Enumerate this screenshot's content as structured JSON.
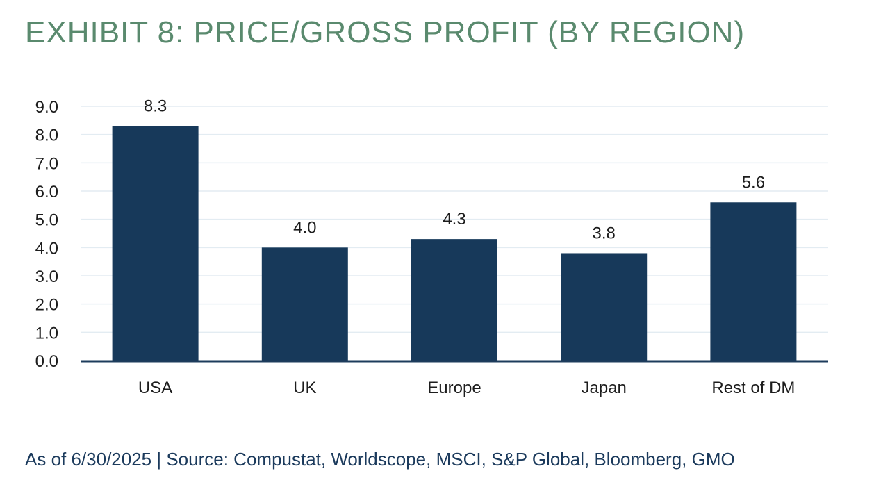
{
  "header": {
    "title": "EXHIBIT 8: PRICE/GROSS PROFIT (BY REGION)"
  },
  "footer": {
    "source": "As of 6/30/2025 | Source: Compustat, Worldscope, MSCI, S&P Global, Bloomberg, GMO"
  },
  "colors": {
    "bar": "#17395a",
    "title": "#5a8a6e",
    "grid": "#e3ecf2",
    "axis": "#1d3c5c"
  },
  "chart_data": {
    "type": "bar",
    "title": "EXHIBIT 8: PRICE/GROSS PROFIT (BY REGION)",
    "xlabel": "",
    "ylabel": "",
    "categories": [
      "USA",
      "UK",
      "Europe",
      "Japan",
      "Rest of DM"
    ],
    "values": [
      8.3,
      4.0,
      4.3,
      3.8,
      5.6
    ],
    "value_labels": [
      "8.3",
      "4.0",
      "4.3",
      "3.8",
      "5.6"
    ],
    "ylim": [
      0,
      9
    ],
    "yticks": [
      0,
      1,
      2,
      3,
      4,
      5,
      6,
      7,
      8,
      9
    ],
    "ytick_labels": [
      "0.0",
      "1.0",
      "2.0",
      "3.0",
      "4.0",
      "5.0",
      "6.0",
      "7.0",
      "8.0",
      "9.0"
    ],
    "grid": true,
    "legend": "none"
  }
}
